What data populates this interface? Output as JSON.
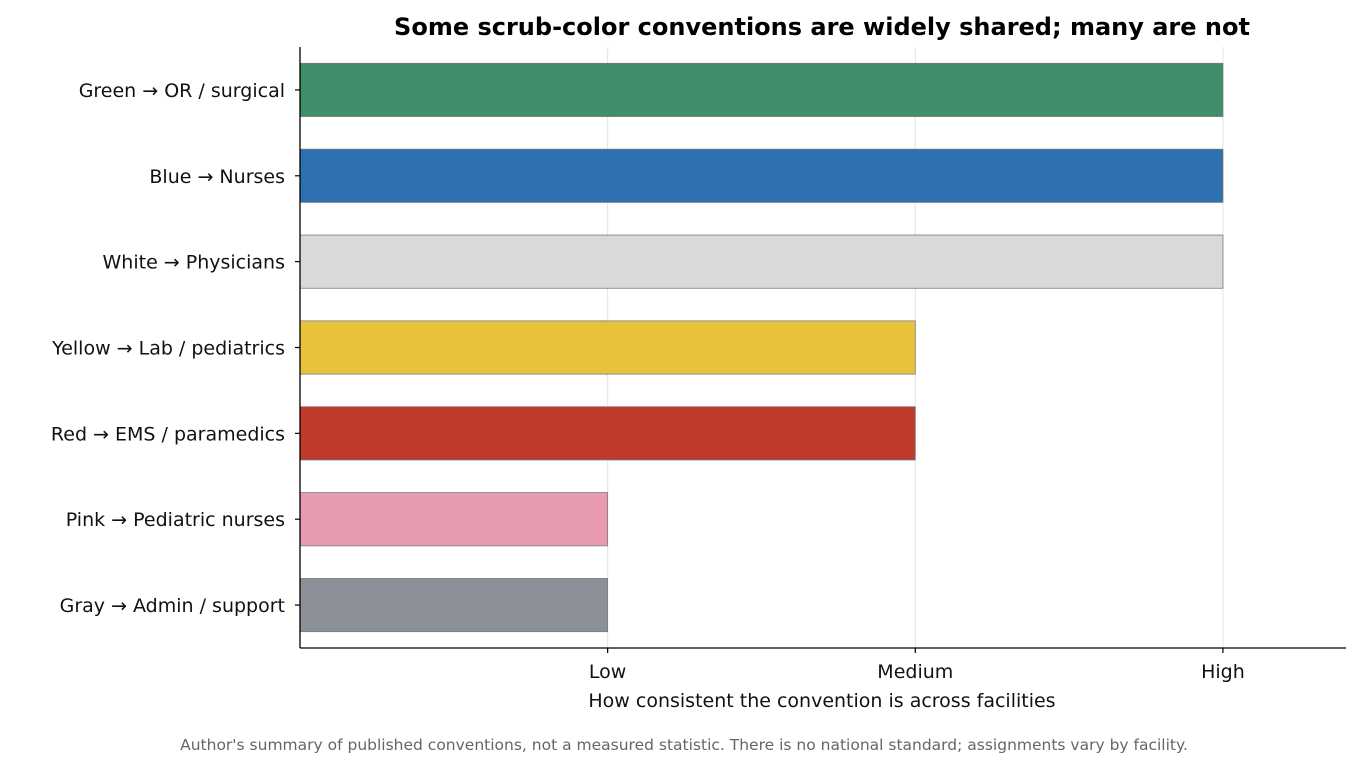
{
  "chart_data": {
    "type": "bar",
    "orientation": "horizontal",
    "title": "Some scrub-color conventions are widely shared; many are not",
    "xlabel": "How consistent the convention is across facilities",
    "ylabel": "",
    "categories": [
      "Green  →  OR / surgical",
      "Blue  →  Nurses",
      "White  →  Physicians",
      "Yellow  →  Lab / pediatrics",
      "Red  →  EMS / paramedics",
      "Pink  →  Pediatric nurses",
      "Gray  →  Admin / support"
    ],
    "values": [
      3,
      3,
      3,
      2,
      2,
      1,
      1
    ],
    "colors": [
      "#3f8f6a",
      "#2e70b0",
      "#d9d9d9",
      "#e8c23a",
      "#c0392b",
      "#e89ab0",
      "#8c9099"
    ],
    "x_ticks": [
      {
        "value": 1,
        "label": "Low"
      },
      {
        "value": 2,
        "label": "Medium"
      },
      {
        "value": 3,
        "label": "High"
      }
    ],
    "xlim": [
      0,
      3.4
    ],
    "grid": "vertical",
    "footnote": "Author's summary of published conventions, not a measured statistic. There is no national standard; assignments vary by facility."
  }
}
